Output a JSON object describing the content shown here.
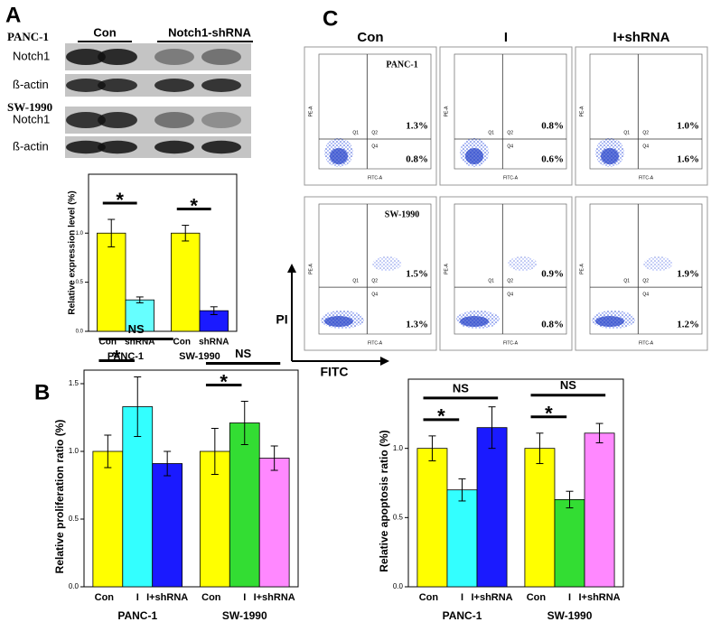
{
  "panel_labels": [
    "A",
    "B",
    "C"
  ],
  "blot": {
    "lanes": [
      "Con",
      "Notch1-shRNA"
    ],
    "cell_lines": [
      {
        "name": "PANC-1",
        "rows": [
          "Notch1",
          "ß-actin"
        ]
      },
      {
        "name": "SW-1990",
        "rows": [
          "Notch1",
          "ß-actin"
        ]
      }
    ]
  },
  "flow": {
    "columns": [
      "Con",
      "I",
      "I+shRNA"
    ],
    "x_axis": "FITC",
    "y_axis": "PI",
    "plot_x_label": "FITC-A",
    "plot_y_label": "PE-A",
    "quadrants": [
      "Q1",
      "Q2",
      "Q4"
    ],
    "rows": [
      {
        "name": "PANC-1",
        "plots": [
          {
            "upper_right": "1.3%",
            "lower_right": "0.8%"
          },
          {
            "upper_right": "0.8%",
            "lower_right": "0.6%"
          },
          {
            "upper_right": "1.0%",
            "lower_right": "1.6%"
          }
        ]
      },
      {
        "name": "SW-1990",
        "plots": [
          {
            "upper_right": "1.5%",
            "lower_right": "1.3%"
          },
          {
            "upper_right": "0.9%",
            "lower_right": "0.8%"
          },
          {
            "upper_right": "1.9%",
            "lower_right": "1.2%"
          }
        ]
      }
    ]
  },
  "chart_data": [
    {
      "type": "bar",
      "y_label": "Relative expression level (%)",
      "ylim": [
        0,
        1.6
      ],
      "yticks": [
        {
          "value": 0,
          "label": "0.0"
        },
        {
          "value": 0.5,
          "label": "0.5"
        },
        {
          "value": 1,
          "label": "1.0"
        }
      ],
      "groups": [
        {
          "name": "PANC-1",
          "categories": [
            "Con",
            "shRNA"
          ],
          "values": [
            1.0,
            0.32
          ],
          "errors": [
            0.14,
            0.03
          ],
          "colors": [
            "#ffff00",
            "#66ffff"
          ],
          "annotations": [
            "*"
          ]
        },
        {
          "name": "SW-1990",
          "categories": [
            "Con",
            "shRNA"
          ],
          "values": [
            1.0,
            0.21
          ],
          "errors": [
            0.08,
            0.04
          ],
          "colors": [
            "#ffff00",
            "#1a1aff"
          ],
          "annotations": [
            "*"
          ]
        }
      ]
    },
    {
      "type": "bar",
      "y_label": "Relative proliferation ratio (%)",
      "ylim": [
        0,
        1.6
      ],
      "yticks": [
        {
          "value": 0,
          "label": "0.0"
        },
        {
          "value": 0.5,
          "label": "0.5"
        },
        {
          "value": 1,
          "label": "1.0"
        },
        {
          "value": 1.5,
          "label": "1.5"
        }
      ],
      "groups": [
        {
          "name": "PANC-1",
          "categories": [
            "Con",
            "I",
            "I+shRNA"
          ],
          "values": [
            1.0,
            1.33,
            0.91
          ],
          "errors": [
            0.12,
            0.22,
            0.09
          ],
          "colors": [
            "#ffff00",
            "#33ffff",
            "#1a1aff"
          ],
          "annotations": [
            "NS",
            "*"
          ]
        },
        {
          "name": "SW-1990",
          "categories": [
            "Con",
            "I",
            "I+shRNA"
          ],
          "values": [
            1.0,
            1.21,
            0.95
          ],
          "errors": [
            0.17,
            0.16,
            0.09
          ],
          "colors": [
            "#ffff00",
            "#33dd33",
            "#ff88ff"
          ],
          "annotations": [
            "NS",
            "*"
          ]
        }
      ]
    },
    {
      "type": "bar",
      "y_label": "Relative apoptosis ratio (%)",
      "ylim": [
        0,
        1.5
      ],
      "yticks": [
        {
          "value": 0,
          "label": "0.0"
        },
        {
          "value": 0.5,
          "label": "0.5"
        },
        {
          "value": 1,
          "label": "1.0"
        }
      ],
      "groups": [
        {
          "name": "PANC-1",
          "categories": [
            "Con",
            "I",
            "I+shRNA"
          ],
          "values": [
            1.0,
            0.7,
            1.15
          ],
          "errors": [
            0.09,
            0.08,
            0.15
          ],
          "colors": [
            "#ffff00",
            "#33ffff",
            "#1a1aff"
          ],
          "annotations": [
            "NS",
            "*"
          ]
        },
        {
          "name": "SW-1990",
          "categories": [
            "Con",
            "I",
            "I+shRNA"
          ],
          "values": [
            1.0,
            0.63,
            1.11
          ],
          "errors": [
            0.11,
            0.06,
            0.07
          ],
          "colors": [
            "#ffff00",
            "#33dd33",
            "#ff88ff"
          ],
          "annotations": [
            "NS",
            "*"
          ]
        }
      ]
    }
  ]
}
